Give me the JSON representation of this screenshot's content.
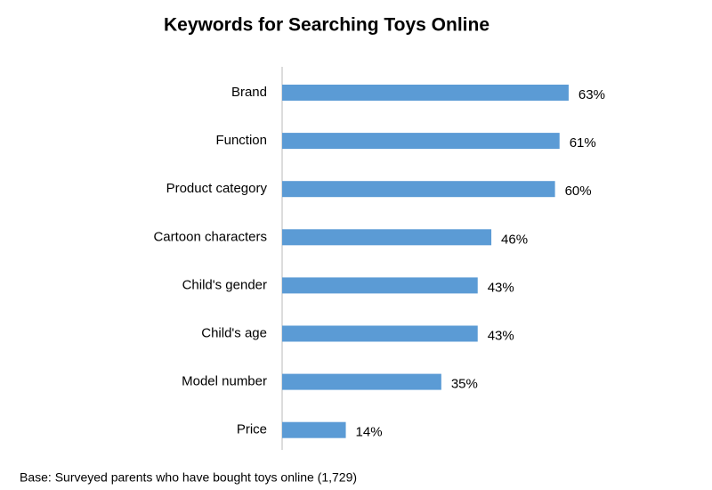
{
  "chart_data": {
    "type": "bar",
    "orientation": "horizontal",
    "title": "Keywords for Searching Toys Online",
    "categories": [
      "Brand",
      "Function",
      "Product category",
      "Cartoon characters",
      "Child's gender",
      "Child's age",
      "Model number",
      "Price"
    ],
    "values": [
      63,
      61,
      60,
      46,
      43,
      43,
      35,
      14
    ],
    "value_labels": [
      "63%",
      "61%",
      "60%",
      "46%",
      "43%",
      "43%",
      "35%",
      "14%"
    ],
    "color": "#5b9bd5",
    "footnote": "Base: Surveyed parents who have bought toys online (1,729)"
  }
}
